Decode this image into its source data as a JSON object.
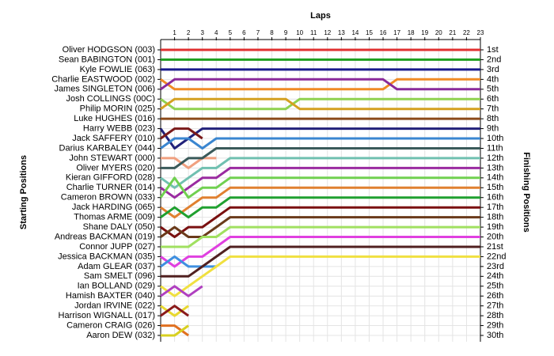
{
  "chart_data": {
    "type": "line",
    "x_title": "Laps",
    "y_title": "Starting Positions",
    "y2_title": "Finishing Positions",
    "x": [
      0,
      1,
      2,
      3,
      4,
      5,
      6,
      7,
      8,
      9,
      10,
      11,
      12,
      13,
      14,
      15,
      16,
      17,
      18,
      19,
      20,
      21,
      22,
      23
    ],
    "xlim": [
      0,
      23
    ],
    "xticks": [
      1,
      2,
      3,
      4,
      5,
      6,
      7,
      8,
      9,
      10,
      11,
      12,
      13,
      14,
      15,
      16,
      17,
      18,
      19,
      20,
      21,
      22,
      23
    ],
    "ylim": [
      1,
      30
    ],
    "y_reversed": true,
    "grid": true,
    "y2ticks": [
      {
        "value": 1,
        "label": "1st"
      },
      {
        "value": 2,
        "label": "2nd"
      },
      {
        "value": 3,
        "label": "3rd"
      },
      {
        "value": 4,
        "label": "4th"
      },
      {
        "value": 5,
        "label": "5th"
      },
      {
        "value": 6,
        "label": "6th"
      },
      {
        "value": 7,
        "label": "7th"
      },
      {
        "value": 8,
        "label": "8th"
      },
      {
        "value": 9,
        "label": "9th"
      },
      {
        "value": 10,
        "label": "10th"
      },
      {
        "value": 11,
        "label": "11th"
      },
      {
        "value": 12,
        "label": "12th"
      },
      {
        "value": 13,
        "label": "13th"
      },
      {
        "value": 14,
        "label": "14th"
      },
      {
        "value": 15,
        "label": "15th"
      },
      {
        "value": 16,
        "label": "16th"
      },
      {
        "value": 17,
        "label": "17th"
      },
      {
        "value": 18,
        "label": "18th"
      },
      {
        "value": 19,
        "label": "19th"
      },
      {
        "value": 20,
        "label": "20th"
      },
      {
        "value": 21,
        "label": "21st"
      },
      {
        "value": 22,
        "label": "22nd"
      },
      {
        "value": 23,
        "label": "23rd"
      },
      {
        "value": 24,
        "label": "24th"
      },
      {
        "value": 25,
        "label": "25th"
      },
      {
        "value": 26,
        "label": "26th"
      },
      {
        "value": 27,
        "label": "27th"
      },
      {
        "value": 28,
        "label": "28th"
      },
      {
        "value": 29,
        "label": "29th"
      },
      {
        "value": 30,
        "label": "30th"
      }
    ],
    "series": [
      {
        "name": "Oliver HODGSON (003)",
        "color": "#e03030",
        "values": [
          1,
          1,
          1,
          1,
          1,
          1,
          1,
          1,
          1,
          1,
          1,
          1,
          1,
          1,
          1,
          1,
          1,
          1,
          1,
          1,
          1,
          1,
          1,
          1
        ]
      },
      {
        "name": "Sean BABINGTON (001)",
        "color": "#1e9e1e",
        "values": [
          2,
          2,
          2,
          2,
          2,
          2,
          2,
          2,
          2,
          2,
          2,
          2,
          2,
          2,
          2,
          2,
          2,
          2,
          2,
          2,
          2,
          2,
          2,
          2
        ]
      },
      {
        "name": "Kyle FOWLIE (063)",
        "color": "#1a1a8c",
        "values": [
          3,
          3,
          3,
          3,
          3,
          3,
          3,
          3,
          3,
          3,
          3,
          3,
          3,
          3,
          3,
          3,
          3,
          3,
          3,
          3,
          3,
          3,
          3,
          3
        ]
      },
      {
        "name": "Charlie EASTWOOD (002)",
        "color": "#f08a24",
        "values": [
          4,
          5,
          5,
          5,
          5,
          5,
          5,
          5,
          5,
          5,
          5,
          5,
          5,
          5,
          5,
          5,
          5,
          4,
          4,
          4,
          4,
          4,
          4,
          4
        ]
      },
      {
        "name": "James SINGLETON (006)",
        "color": "#8a2a9a",
        "values": [
          5,
          4,
          4,
          4,
          4,
          4,
          4,
          4,
          4,
          4,
          4,
          4,
          4,
          4,
          4,
          4,
          4,
          5,
          5,
          5,
          5,
          5,
          5,
          5
        ]
      },
      {
        "name": "Josh COLLINGS (00C)",
        "color": "#8fd14f",
        "values": [
          6,
          7,
          7,
          7,
          7,
          7,
          7,
          7,
          7,
          7,
          6,
          6,
          6,
          6,
          6,
          6,
          6,
          6,
          6,
          6,
          6,
          6,
          6,
          6
        ]
      },
      {
        "name": "Philip MORIN (025)",
        "color": "#d4a020",
        "values": [
          7,
          6,
          6,
          6,
          6,
          6,
          6,
          6,
          6,
          6,
          7,
          7,
          7,
          7,
          7,
          7,
          7,
          7,
          7,
          7,
          7,
          7,
          7,
          7
        ]
      },
      {
        "name": "Luke HUGHES (016)",
        "color": "#8b4a1a",
        "values": [
          8,
          8,
          8,
          8,
          8,
          8,
          8,
          8,
          8,
          8,
          8,
          8,
          8,
          8,
          8,
          8,
          8,
          8,
          8,
          8,
          8,
          8,
          8,
          8
        ]
      },
      {
        "name": "Harry WEBB (023)",
        "color": "#22227a",
        "values": [
          9,
          11,
          10,
          9,
          9,
          9,
          9,
          9,
          9,
          9,
          9,
          9,
          9,
          9,
          9,
          9,
          9,
          9,
          9,
          9,
          9,
          9,
          9,
          9
        ]
      },
      {
        "name": "Jack SAFFERY (010)",
        "color": "#7a1a1a",
        "values": [
          10,
          9,
          9,
          10,
          null,
          null,
          null,
          null,
          null,
          null,
          null,
          null,
          null,
          null,
          null,
          null,
          null,
          null,
          null,
          null,
          null,
          null,
          null,
          null
        ]
      },
      {
        "name": "Darius KARBALEY (044)",
        "color": "#3a86d0",
        "values": [
          11,
          10,
          10,
          11,
          10,
          10,
          10,
          10,
          10,
          10,
          10,
          10,
          10,
          10,
          10,
          10,
          10,
          10,
          10,
          10,
          10,
          10,
          10,
          10
        ]
      },
      {
        "name": "John STEWART (000)",
        "color": "#f0a080",
        "values": [
          12,
          12,
          13,
          12,
          12,
          null,
          null,
          null,
          null,
          null,
          null,
          null,
          null,
          null,
          null,
          null,
          null,
          null,
          null,
          null,
          null,
          null,
          null,
          null
        ]
      },
      {
        "name": "Oliver MYERS (020)",
        "color": "#3a5a5a",
        "values": [
          13,
          13,
          12,
          12,
          11,
          11,
          11,
          11,
          11,
          11,
          11,
          11,
          11,
          11,
          11,
          11,
          11,
          11,
          11,
          11,
          11,
          11,
          11,
          11
        ]
      },
      {
        "name": "Kieran GIFFORD (028)",
        "color": "#70c0b0",
        "values": [
          14,
          15,
          14,
          13,
          13,
          12,
          12,
          12,
          12,
          12,
          12,
          12,
          12,
          12,
          12,
          12,
          12,
          12,
          12,
          12,
          12,
          12,
          12,
          12
        ]
      },
      {
        "name": "Charlie TURNER (014)",
        "color": "#9a2aa0",
        "values": [
          15,
          16,
          15,
          14,
          14,
          13,
          13,
          13,
          13,
          13,
          13,
          13,
          13,
          13,
          13,
          13,
          13,
          13,
          13,
          13,
          13,
          13,
          13,
          13
        ]
      },
      {
        "name": "Cameron BROWN (033)",
        "color": "#70d050",
        "values": [
          16,
          14,
          16,
          15,
          15,
          14,
          14,
          14,
          14,
          14,
          14,
          14,
          14,
          14,
          14,
          14,
          14,
          14,
          14,
          14,
          14,
          14,
          14,
          14
        ]
      },
      {
        "name": "Jack HARDING (065)",
        "color": "#e08030",
        "values": [
          17,
          18,
          17,
          16,
          16,
          15,
          15,
          15,
          15,
          15,
          15,
          15,
          15,
          15,
          15,
          15,
          15,
          15,
          15,
          15,
          15,
          15,
          15,
          15
        ]
      },
      {
        "name": "Thomas ARME (009)",
        "color": "#20a030",
        "values": [
          18,
          17,
          18,
          17,
          17,
          16,
          16,
          16,
          16,
          16,
          16,
          16,
          16,
          16,
          16,
          16,
          16,
          16,
          16,
          16,
          16,
          16,
          16,
          16
        ]
      },
      {
        "name": "Shane DALY (050)",
        "color": "#7a1010",
        "values": [
          19,
          20,
          19,
          19,
          18,
          17,
          17,
          17,
          17,
          17,
          17,
          17,
          17,
          17,
          17,
          17,
          17,
          17,
          17,
          17,
          17,
          17,
          17,
          17
        ]
      },
      {
        "name": "Andreas BACKMAN (019)",
        "color": "#6a3a1a",
        "values": [
          20,
          19,
          20,
          20,
          19,
          18,
          18,
          18,
          18,
          18,
          18,
          18,
          18,
          18,
          18,
          18,
          18,
          18,
          18,
          18,
          18,
          18,
          18,
          18
        ]
      },
      {
        "name": "Connor JUPP (027)",
        "color": "#a0e060",
        "values": [
          21,
          21,
          21,
          20,
          20,
          19,
          19,
          19,
          19,
          19,
          19,
          19,
          19,
          19,
          19,
          19,
          19,
          19,
          19,
          19,
          19,
          19,
          19,
          19
        ]
      },
      {
        "name": "Jessica BACKMAN (035)",
        "color": "#e040e0",
        "values": [
          22,
          23,
          22,
          22,
          21,
          20,
          20,
          20,
          20,
          20,
          20,
          20,
          20,
          20,
          20,
          20,
          20,
          20,
          20,
          20,
          20,
          20,
          20,
          20
        ]
      },
      {
        "name": "Adam GLEAR (037)",
        "color": "#4090e0",
        "values": [
          23,
          22,
          23,
          23,
          23,
          null,
          null,
          null,
          null,
          null,
          null,
          null,
          null,
          null,
          null,
          null,
          null,
          null,
          null,
          null,
          null,
          null,
          null,
          null
        ]
      },
      {
        "name": "Sam SMELT (096)",
        "color": "#502020",
        "values": [
          24,
          24,
          24,
          23,
          22,
          21,
          21,
          21,
          21,
          21,
          21,
          21,
          21,
          21,
          21,
          21,
          21,
          21,
          21,
          21,
          21,
          21,
          21,
          21
        ]
      },
      {
        "name": "Ian BOLLAND (029)",
        "color": "#f0e040",
        "values": [
          25,
          26,
          25,
          24,
          23,
          22,
          22,
          22,
          22,
          22,
          22,
          22,
          22,
          22,
          22,
          22,
          22,
          22,
          22,
          22,
          22,
          22,
          22,
          22
        ]
      },
      {
        "name": "Hamish BAXTER (040)",
        "color": "#b040c0",
        "values": [
          26,
          25,
          26,
          25,
          null,
          null,
          null,
          null,
          null,
          null,
          null,
          null,
          null,
          null,
          null,
          null,
          null,
          null,
          null,
          null,
          null,
          null,
          null,
          null
        ]
      },
      {
        "name": "Jordan IRVINE (022)",
        "color": "#e8d830",
        "values": [
          27,
          28,
          27,
          null,
          null,
          null,
          null,
          null,
          null,
          null,
          null,
          null,
          null,
          null,
          null,
          null,
          null,
          null,
          null,
          null,
          null,
          null,
          null,
          null
        ]
      },
      {
        "name": "Harrison WIGNALL (017)",
        "color": "#8a1a1a",
        "values": [
          28,
          27,
          28,
          null,
          null,
          null,
          null,
          null,
          null,
          null,
          null,
          null,
          null,
          null,
          null,
          null,
          null,
          null,
          null,
          null,
          null,
          null,
          null,
          null
        ]
      },
      {
        "name": "Cameron CRAIG (026)",
        "color": "#e07020",
        "values": [
          29,
          29,
          30,
          null,
          null,
          null,
          null,
          null,
          null,
          null,
          null,
          null,
          null,
          null,
          null,
          null,
          null,
          null,
          null,
          null,
          null,
          null,
          null,
          null
        ]
      },
      {
        "name": "Aaron DEW (032)",
        "color": "#d8d020",
        "values": [
          30,
          30,
          29,
          null,
          null,
          null,
          null,
          null,
          null,
          null,
          null,
          null,
          null,
          null,
          null,
          null,
          null,
          null,
          null,
          null,
          null,
          null,
          null,
          null
        ]
      }
    ]
  }
}
